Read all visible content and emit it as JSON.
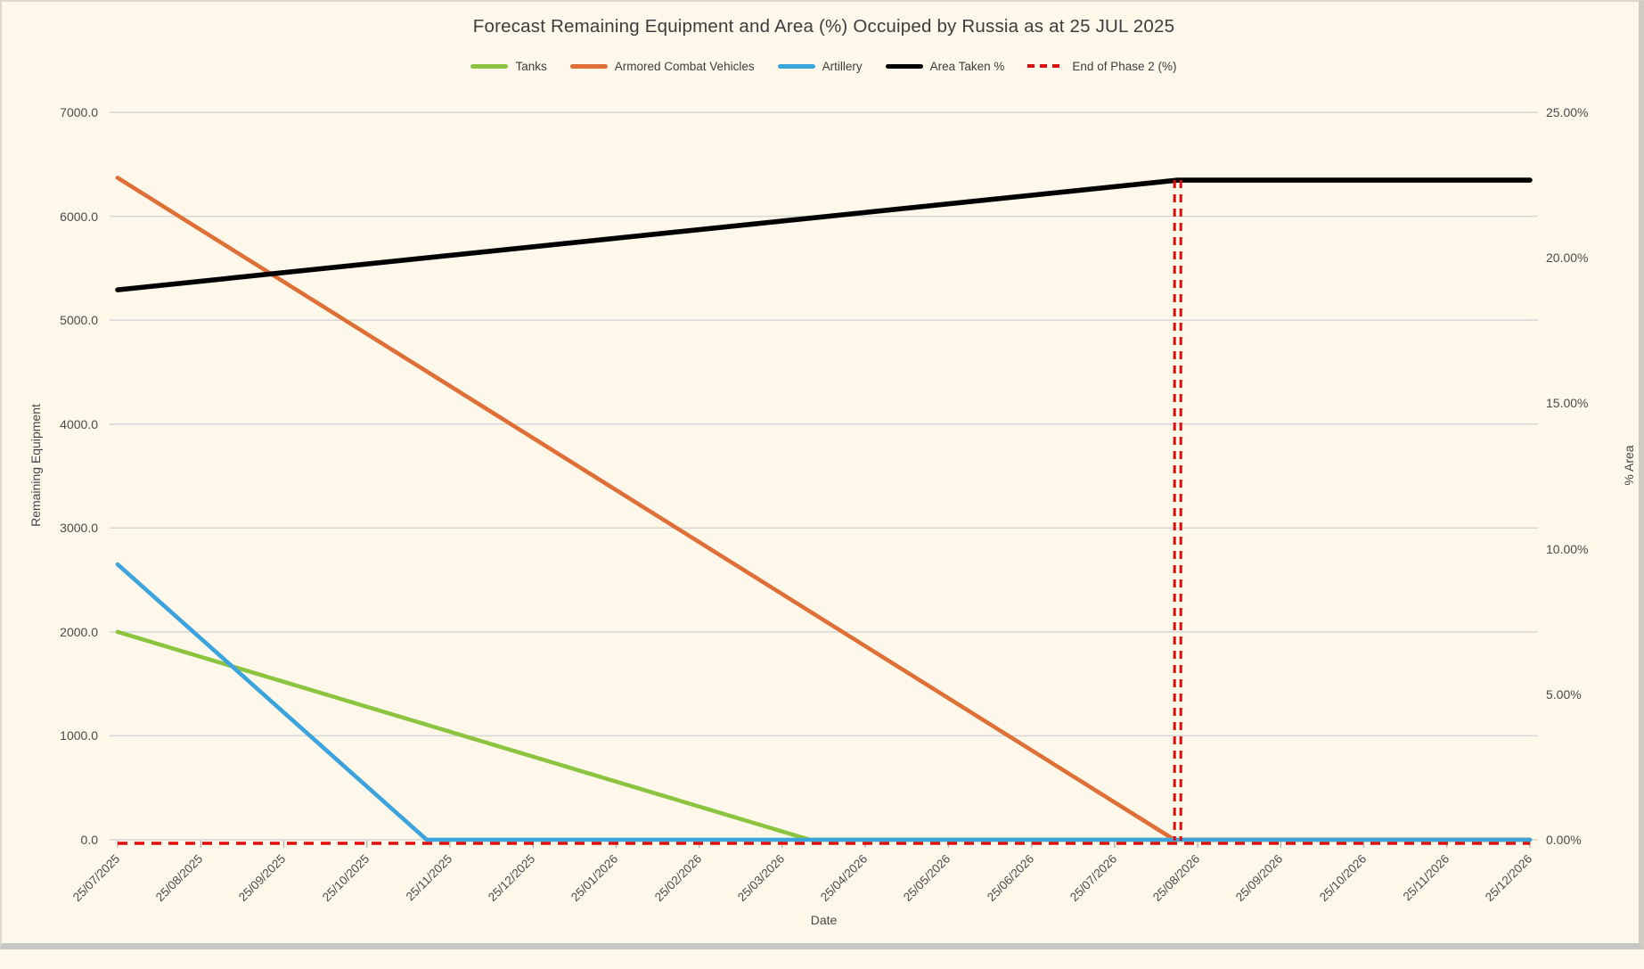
{
  "chart_data": {
    "type": "line",
    "title": "Forecast Remaining Equipment and Area (%) Occuiped by Russia as at 25 JUL 2025",
    "xlabel": "Date",
    "ylabel_left": "Remaining Equipment",
    "ylabel_right": "% Area",
    "legend_position": "top",
    "grid": "horizontal",
    "x_categories": [
      "25/07/2025",
      "25/08/2025",
      "25/09/2025",
      "25/10/2025",
      "25/11/2025",
      "25/12/2025",
      "25/01/2026",
      "25/02/2026",
      "25/03/2026",
      "25/04/2026",
      "25/05/2026",
      "25/06/2026",
      "25/07/2026",
      "25/08/2026",
      "25/09/2026",
      "25/10/2026",
      "25/11/2026",
      "25/12/2026"
    ],
    "left_axis": {
      "min": 0,
      "max": 7000,
      "step": 1000,
      "tick_labels": [
        "7000.0",
        "6000.0",
        "5000.0",
        "4000.0",
        "3000.0",
        "2000.0",
        "1000.0",
        "0.0"
      ]
    },
    "right_axis": {
      "min": 0,
      "max": 25,
      "step": 5,
      "tick_labels": [
        "25.00%",
        "20.00%",
        "15.00%",
        "10.00%",
        "5.00%",
        "0.00%"
      ]
    },
    "series": [
      {
        "name": "Tanks",
        "color": "#8CC43F",
        "axis": "left",
        "width": 4.6,
        "style": "solid",
        "points": [
          {
            "x": 0,
            "y": 2000
          },
          {
            "x": 8.33,
            "y": 0
          },
          {
            "x": 17,
            "y": 0
          }
        ],
        "values_monthly": [
          2000,
          1760,
          1520,
          1280,
          1040,
          800,
          560,
          320,
          80,
          0,
          0,
          0,
          0,
          0,
          0,
          0,
          0,
          0
        ]
      },
      {
        "name": "Armored Combat Vehicles",
        "color": "#E06F37",
        "axis": "left",
        "width": 4.6,
        "style": "solid",
        "points": [
          {
            "x": 0,
            "y": 6370
          },
          {
            "x": 12.72,
            "y": 0
          },
          {
            "x": 17,
            "y": 0
          }
        ],
        "values_monthly": [
          6370,
          5869,
          5368,
          4868,
          4367,
          3866,
          3365,
          2864,
          2364,
          1863,
          1362,
          861,
          360,
          0,
          0,
          0,
          0,
          0
        ]
      },
      {
        "name": "Artillery",
        "color": "#3BA4DC",
        "axis": "left",
        "width": 4.6,
        "style": "solid",
        "points": [
          {
            "x": 0,
            "y": 2650
          },
          {
            "x": 3.72,
            "y": 0
          },
          {
            "x": 17,
            "y": 0
          }
        ],
        "values_monthly": [
          2650,
          1938,
          1225,
          513,
          0,
          0,
          0,
          0,
          0,
          0,
          0,
          0,
          0,
          0,
          0,
          0,
          0,
          0
        ]
      },
      {
        "name": "Area Taken %",
        "color": "#000000",
        "axis": "right",
        "width": 5.6,
        "style": "solid",
        "points": [
          {
            "x": 0,
            "y": 18.9
          },
          {
            "x": 12.76,
            "y": 22.67
          },
          {
            "x": 17,
            "y": 22.67
          }
        ],
        "values_monthly": [
          18.9,
          19.2,
          19.49,
          19.79,
          20.08,
          20.38,
          20.67,
          20.97,
          21.26,
          21.56,
          21.86,
          22.15,
          22.45,
          22.67,
          22.67,
          22.67,
          22.67,
          22.67
        ]
      },
      {
        "name": "End of Phase 2 (%)",
        "color": "#E00B0B",
        "axis": "right",
        "width": 3.5,
        "style": "dashed",
        "horizontal_y": 0,
        "vertical_x": 12.76
      }
    ]
  },
  "frame": {
    "background": "#FDF8EA",
    "grid_color": "#D6D6D6",
    "tick_color": "#ABABAB",
    "text_color": "#404040"
  }
}
